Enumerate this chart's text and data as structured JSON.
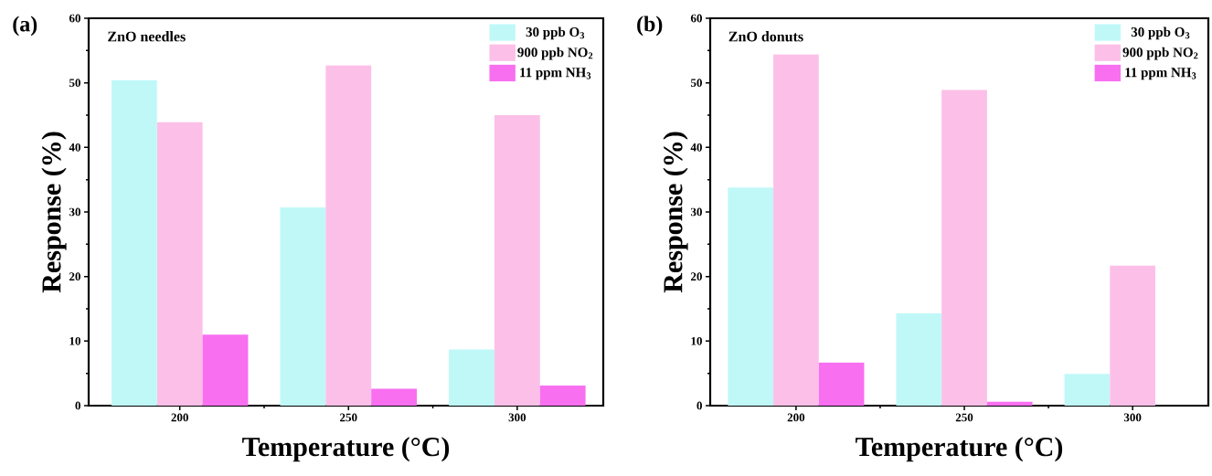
{
  "chart_data": [
    {
      "type": "bar",
      "title": "(a)",
      "annotations": [
        "ZnO needles"
      ],
      "xlabel": "Temperature (°C)",
      "ylabel": "Response (%)",
      "categories": [
        "200",
        "250",
        "300"
      ],
      "ylim": [
        0,
        60
      ],
      "yticks": [
        0,
        10,
        20,
        30,
        40,
        50,
        60
      ],
      "legend": "top right",
      "series": [
        {
          "name": "30 ppb O$_{3}$",
          "color": "#c0f8f8",
          "values": [
            50.4,
            30.7,
            8.7
          ]
        },
        {
          "name": "900 ppb NO$_{2}$",
          "color": "#fcc0e8",
          "values": [
            43.9,
            52.7,
            45.0
          ]
        },
        {
          "name": "11 ppm NH$_{3}$",
          "color": "#f870f0",
          "values": [
            11.0,
            2.6,
            3.1
          ]
        }
      ]
    },
    {
      "type": "bar",
      "title": "(b)",
      "annotations": [
        "ZnO donuts"
      ],
      "xlabel": "Temperature (°C)",
      "ylabel": "Response (%)",
      "categories": [
        "200",
        "250",
        "300"
      ],
      "ylim": [
        0,
        60
      ],
      "yticks": [
        0,
        10,
        20,
        30,
        40,
        50,
        60
      ],
      "legend": "top right",
      "series": [
        {
          "name": "30 ppb O$_{3}$",
          "color": "#c0f8f8",
          "values": [
            33.8,
            14.3,
            4.9
          ]
        },
        {
          "name": "900 ppb NO$_{2}$",
          "color": "#fcc0e8",
          "values": [
            54.4,
            48.9,
            21.7
          ]
        },
        {
          "name": "11 ppm NH$_{3}$",
          "color": "#f870f0",
          "values": [
            6.7,
            0.6,
            null
          ]
        }
      ]
    }
  ]
}
